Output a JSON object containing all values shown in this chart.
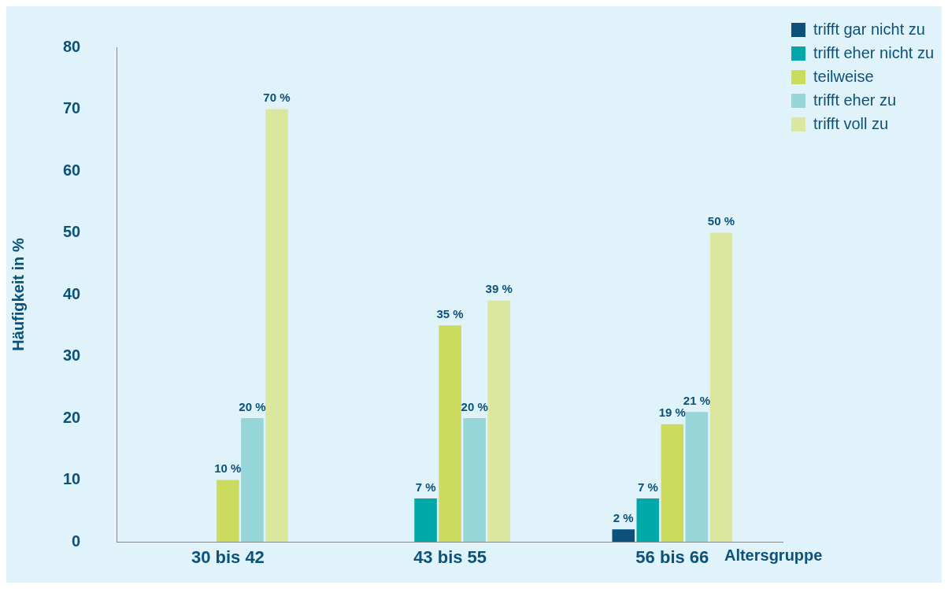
{
  "chart_data": {
    "type": "bar",
    "ylabel": "Häufigkeit in %",
    "xlabel": "Altersgruppe",
    "categories": [
      "30 bis 42",
      "43 bis 55",
      "56 bis 66"
    ],
    "series": [
      {
        "name": "trifft gar nicht zu",
        "color": "#0a527a",
        "values": [
          null,
          null,
          2
        ],
        "value_labels": [
          null,
          null,
          "2 %"
        ]
      },
      {
        "name": "trifft eher nicht zu",
        "color": "#00a8aa",
        "values": [
          null,
          7,
          7
        ],
        "value_labels": [
          null,
          "7 %",
          "7 %"
        ]
      },
      {
        "name": "teilweise",
        "color": "#cadb5e",
        "values": [
          10,
          35,
          19
        ],
        "value_labels": [
          "10 %",
          "35 %",
          "19 %"
        ]
      },
      {
        "name": "trifft eher zu",
        "color": "#96d5d8",
        "values": [
          20,
          20,
          21
        ],
        "value_labels": [
          "20 %",
          "20 %",
          "21 %"
        ]
      },
      {
        "name": "trifft voll zu",
        "color": "#dbe79f",
        "values": [
          70,
          39,
          50
        ],
        "value_labels": [
          "70 %",
          "39 %",
          "50 %"
        ]
      }
    ],
    "ylim": [
      0,
      80
    ],
    "yticks": [
      0,
      10,
      20,
      30,
      40,
      50,
      60,
      70,
      80
    ],
    "grid": false,
    "legend": "top right"
  }
}
